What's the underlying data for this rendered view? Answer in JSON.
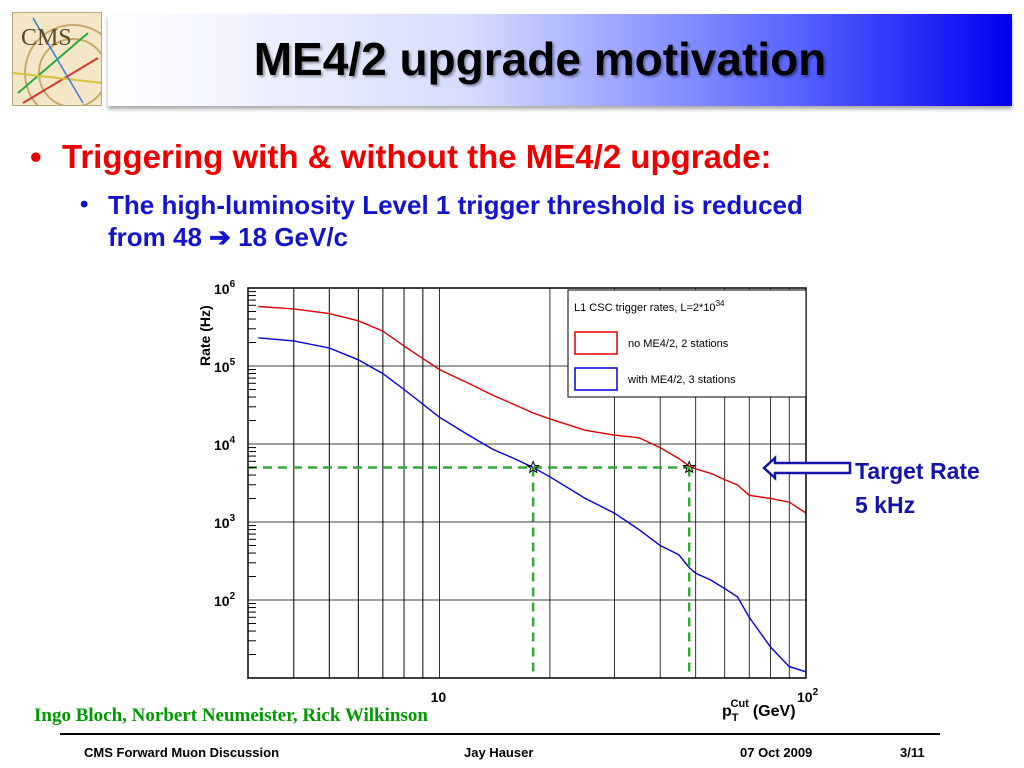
{
  "slide": {
    "title": "ME4/2 upgrade motivation",
    "bullet1": "Triggering with & without the ME4/2 upgrade:",
    "bullet2_line1": "The high-luminosity Level 1 trigger threshold is reduced",
    "bullet2_line2": "from 48 ➔ 18 GeV/c",
    "logo_text": "CMS",
    "target_rate_label": "Target Rate",
    "target_rate_value": "5 kHz",
    "authors": "Ingo Bloch, Norbert Neumeister, Rick Wilkinson",
    "footer": {
      "left": "CMS Forward Muon Discussion",
      "center": "Jay Hauser",
      "date": "07 Oct 2009",
      "page": "3/11"
    }
  },
  "chart_data": {
    "type": "line",
    "ylabel": "Rate (Hz)",
    "xlabel_main": "p",
    "xlabel_sub": "T",
    "xlabel_sup": "Cut",
    "xlabel_unit": "(GeV)",
    "xscale": "log",
    "yscale": "log",
    "xlim": [
      3,
      100
    ],
    "ylim": [
      10,
      1000000
    ],
    "x_ticks": [
      {
        "value": 10,
        "label": "10"
      },
      {
        "value": 100,
        "label": "10",
        "exp": "2"
      }
    ],
    "y_ticks": [
      {
        "value": 100,
        "label": "10",
        "exp": "2"
      },
      {
        "value": 1000,
        "label": "10",
        "exp": "3"
      },
      {
        "value": 10000,
        "label": "10",
        "exp": "4"
      },
      {
        "value": 100000,
        "label": "10",
        "exp": "5"
      },
      {
        "value": 1000000,
        "label": "10",
        "exp": "6"
      }
    ],
    "grid": true,
    "legend_title": "L1 CSC trigger rates, L=2*10",
    "legend_title_sup": "34",
    "legend_position": "top-right",
    "series": [
      {
        "name": "no ME4/2, 2 stations",
        "color": "#dd0000",
        "x": [
          3.2,
          4,
          5,
          6,
          7,
          8,
          10,
          12,
          14,
          16,
          18,
          20,
          25,
          30,
          35,
          40,
          45,
          48,
          50,
          55,
          60,
          65,
          70,
          80,
          90,
          100
        ],
        "y": [
          580000,
          540000,
          470000,
          380000,
          280000,
          180000,
          90000,
          60000,
          42000,
          32000,
          25000,
          21000,
          15000,
          13000,
          12000,
          9000,
          6500,
          5200,
          4800,
          4200,
          3500,
          3000,
          2200,
          2000,
          1800,
          1300
        ]
      },
      {
        "name": "with ME4/2, 3 stations",
        "color": "#0000dd",
        "x": [
          3.2,
          4,
          5,
          6,
          7,
          8,
          10,
          12,
          14,
          16,
          18,
          20,
          25,
          30,
          35,
          40,
          45,
          48,
          50,
          55,
          60,
          65,
          70,
          80,
          90,
          100
        ],
        "y": [
          230000,
          210000,
          170000,
          120000,
          80000,
          50000,
          22000,
          13000,
          8500,
          6500,
          5000,
          3800,
          2000,
          1300,
          800,
          500,
          380,
          260,
          220,
          180,
          140,
          110,
          60,
          25,
          14,
          12
        ]
      }
    ],
    "annotations": [
      {
        "type": "hline",
        "y": 5000,
        "color": "#33aa33",
        "style": "dashed"
      },
      {
        "type": "vline",
        "x": 18,
        "color": "#33aa33",
        "style": "dashed"
      },
      {
        "type": "vline",
        "x": 48,
        "color": "#33aa33",
        "style": "dashed"
      },
      {
        "type": "marker",
        "shape": "star",
        "x": 18,
        "y": 5000
      },
      {
        "type": "marker",
        "shape": "star",
        "x": 48,
        "y": 5000
      }
    ]
  }
}
